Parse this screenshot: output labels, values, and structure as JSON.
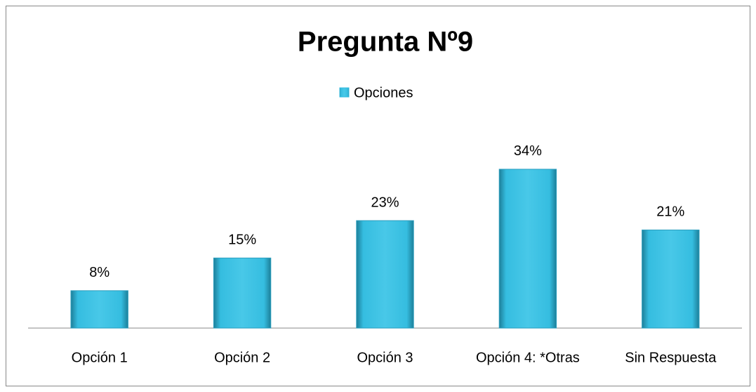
{
  "chart_data": {
    "type": "bar",
    "title": "Pregunta Nº9",
    "categories": [
      "Opción 1",
      "Opción 2",
      "Opción 3",
      "Opción 4: *Otras",
      "Sin Respuesta"
    ],
    "series": [
      {
        "name": "Opciones",
        "color": "#35bde0",
        "values": [
          8,
          15,
          23,
          34,
          21
        ],
        "value_labels": [
          "8%",
          "15%",
          "23%",
          "34%",
          "21%"
        ]
      }
    ],
    "ylim": [
      0,
      40
    ],
    "legend": "top"
  }
}
